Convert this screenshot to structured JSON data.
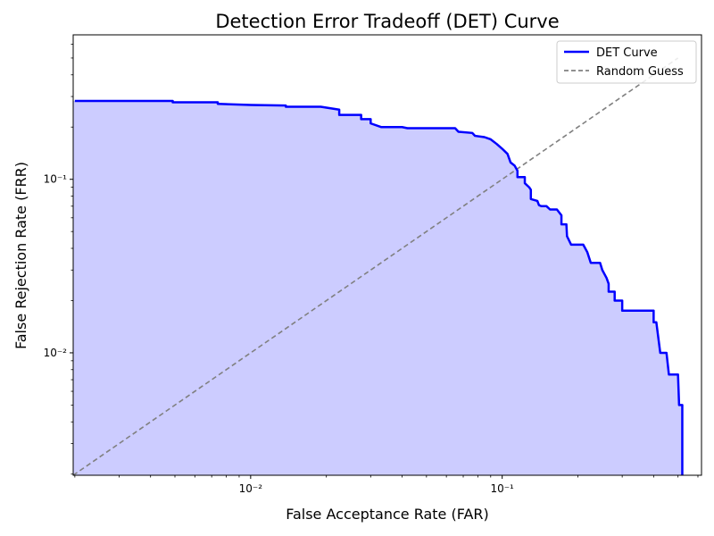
{
  "chart_data": {
    "type": "line",
    "title": "Detection Error Tradeoff (DET) Curve",
    "xlabel": "False Acceptance Rate (FAR)",
    "ylabel": "False Rejection Rate (FRR)",
    "x_scale": "log",
    "y_scale": "log",
    "xlim": [
      0.00197,
      0.62
    ],
    "ylim": [
      0.00197,
      0.68
    ],
    "x_ticks": [
      {
        "value": 0.01,
        "label": "10⁻²"
      },
      {
        "value": 0.1,
        "label": "10⁻¹"
      }
    ],
    "y_ticks": [
      {
        "value": 0.01,
        "label": "10⁻²"
      },
      {
        "value": 0.1,
        "label": "10⁻¹"
      }
    ],
    "grid": false,
    "legend": {
      "position": "top-right"
    },
    "colors": {
      "det": "#0000ff",
      "fill": "#ccccff",
      "random": "#808080"
    },
    "series": [
      {
        "name": "DET Curve",
        "style": "solid",
        "fill_under": true,
        "points": [
          [
            0.002,
            0.283
          ],
          [
            0.0049,
            0.283
          ],
          [
            0.0049,
            0.278
          ],
          [
            0.0074,
            0.278
          ],
          [
            0.0074,
            0.272
          ],
          [
            0.01,
            0.268
          ],
          [
            0.0138,
            0.266
          ],
          [
            0.0138,
            0.262
          ],
          [
            0.019,
            0.262
          ],
          [
            0.0225,
            0.252
          ],
          [
            0.0225,
            0.235
          ],
          [
            0.0275,
            0.235
          ],
          [
            0.0275,
            0.222
          ],
          [
            0.03,
            0.222
          ],
          [
            0.03,
            0.21
          ],
          [
            0.033,
            0.2
          ],
          [
            0.04,
            0.2
          ],
          [
            0.042,
            0.197
          ],
          [
            0.05,
            0.197
          ],
          [
            0.065,
            0.197
          ],
          [
            0.067,
            0.188
          ],
          [
            0.076,
            0.185
          ],
          [
            0.078,
            0.178
          ],
          [
            0.085,
            0.175
          ],
          [
            0.09,
            0.17
          ],
          [
            0.095,
            0.16
          ],
          [
            0.1,
            0.15
          ],
          [
            0.105,
            0.14
          ],
          [
            0.108,
            0.125
          ],
          [
            0.112,
            0.12
          ],
          [
            0.115,
            0.112
          ],
          [
            0.115,
            0.103
          ],
          [
            0.123,
            0.103
          ],
          [
            0.123,
            0.095
          ],
          [
            0.128,
            0.09
          ],
          [
            0.13,
            0.087
          ],
          [
            0.13,
            0.077
          ],
          [
            0.138,
            0.075
          ],
          [
            0.14,
            0.071
          ],
          [
            0.143,
            0.07
          ],
          [
            0.15,
            0.07
          ],
          [
            0.155,
            0.067
          ],
          [
            0.165,
            0.067
          ],
          [
            0.172,
            0.062
          ],
          [
            0.172,
            0.055
          ],
          [
            0.18,
            0.055
          ],
          [
            0.181,
            0.047
          ],
          [
            0.188,
            0.042
          ],
          [
            0.21,
            0.042
          ],
          [
            0.218,
            0.038
          ],
          [
            0.225,
            0.033
          ],
          [
            0.245,
            0.033
          ],
          [
            0.25,
            0.03
          ],
          [
            0.26,
            0.027
          ],
          [
            0.265,
            0.025
          ],
          [
            0.265,
            0.0225
          ],
          [
            0.28,
            0.0225
          ],
          [
            0.28,
            0.02
          ],
          [
            0.3,
            0.02
          ],
          [
            0.3,
            0.0175
          ],
          [
            0.4,
            0.0175
          ],
          [
            0.4,
            0.015
          ],
          [
            0.41,
            0.015
          ],
          [
            0.425,
            0.01
          ],
          [
            0.45,
            0.01
          ],
          [
            0.46,
            0.0075
          ],
          [
            0.5,
            0.0075
          ],
          [
            0.505,
            0.005
          ],
          [
            0.52,
            0.005
          ],
          [
            0.52,
            0.00197
          ]
        ]
      },
      {
        "name": "Random Guess",
        "style": "dashed",
        "points": [
          [
            0.00197,
            0.00197
          ],
          [
            0.5,
            0.5
          ]
        ]
      }
    ]
  }
}
